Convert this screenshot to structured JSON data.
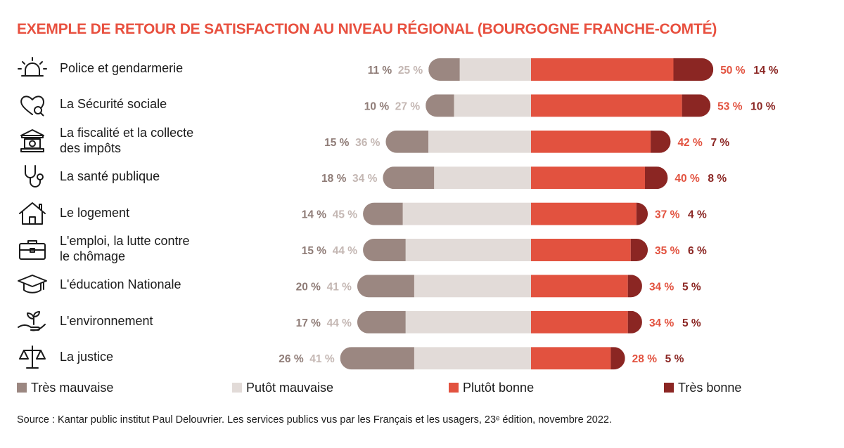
{
  "colors": {
    "title": "#e8503f",
    "tres_mauvaise": "#9b8781",
    "plutot_mauvaise": "#e2dbd8",
    "plutot_bonne": "#e2523f",
    "tres_bonne": "#8b2623",
    "label_tres_mauvaise": "#8f7c77",
    "label_plutot_mauvaise": "#c4b7b3",
    "label_plutot_bonne": "#e2523f",
    "label_tres_bonne": "#8b2623"
  },
  "chart_data": {
    "type": "bar",
    "title": "EXEMPLE DE RETOUR DE SATISFACTION AU NIVEAU RÉGIONAL (BOURGOGNE FRANCHE-COMTÉ)",
    "categories": [
      "Police et gendarmerie",
      "La Sécurité sociale",
      "La fiscalité et la collecte des impôts",
      "La santé publique",
      "Le logement",
      "L'emploi, la lutte contre le chômage",
      "L'éducation Nationale",
      "L'environnement",
      "La justice"
    ],
    "category_lines": [
      [
        "Police et gendarmerie"
      ],
      [
        "La Sécurité sociale"
      ],
      [
        "La fiscalité et la collecte",
        "des impôts"
      ],
      [
        "La santé publique"
      ],
      [
        "Le logement"
      ],
      [
        "L'emploi, la lutte contre",
        "le chômage"
      ],
      [
        "L'éducation Nationale"
      ],
      [
        "L'environnement"
      ],
      [
        "La justice"
      ]
    ],
    "icons": [
      "siren-icon",
      "heart-search-icon",
      "bank-icon",
      "stethoscope-icon",
      "house-icon",
      "briefcase-icon",
      "graduation-cap-icon",
      "plant-hand-icon",
      "scales-icon"
    ],
    "series": [
      {
        "name": "Très mauvaise",
        "values": [
          11,
          10,
          15,
          18,
          14,
          15,
          20,
          17,
          26
        ]
      },
      {
        "name": "Putôt mauvaise",
        "values": [
          25,
          27,
          36,
          34,
          45,
          44,
          41,
          44,
          41
        ]
      },
      {
        "name": "Plutôt bonne",
        "values": [
          50,
          53,
          42,
          40,
          37,
          35,
          34,
          34,
          28
        ]
      },
      {
        "name": "Très bonne",
        "values": [
          14,
          10,
          7,
          8,
          4,
          6,
          5,
          5,
          5
        ]
      }
    ],
    "value_suffix": " %",
    "legend_position": "bottom"
  },
  "source": "Source : Kantar public institut Paul Delouvrier. Les services publics vus par les Français et les usagers, 23ᵉ édition, novembre 2022."
}
